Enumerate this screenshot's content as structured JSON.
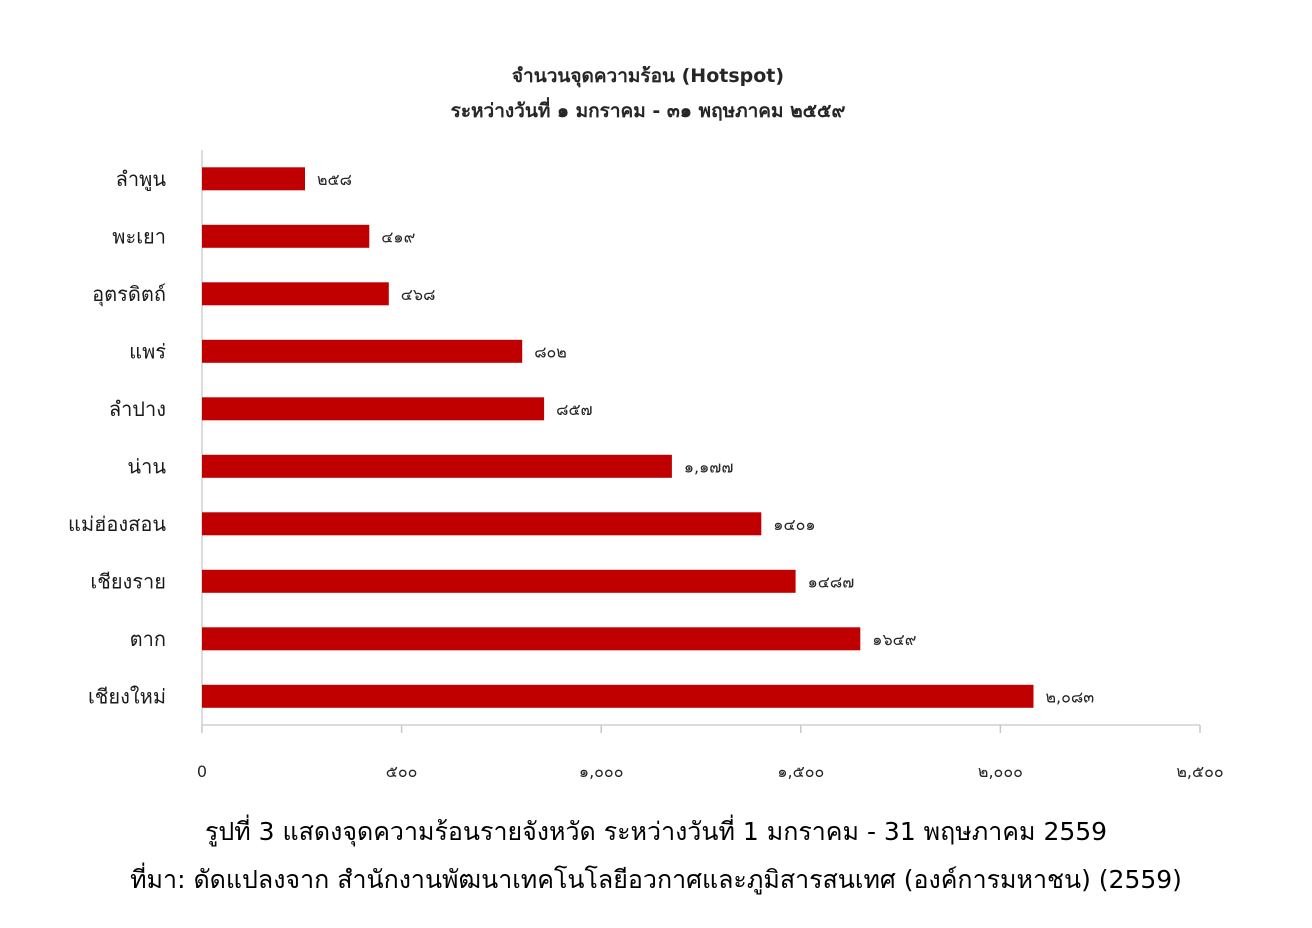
{
  "chart_data": {
    "type": "bar",
    "orientation": "horizontal",
    "title": "จำนวนจุดความร้อน (Hotspot)",
    "subtitle": "ระหว่างวันที่ ๑ มกราคม - ๓๑ พฤษภาคม ๒๕๕๙",
    "categories": [
      "ลำพูน",
      "พะเยา",
      "อุตรดิตถ์",
      "แพร่",
      "ลำปาง",
      "น่าน",
      "แม่ฮ่องสอน",
      "เชียงราย",
      "ตาก",
      "เชียงใหม่"
    ],
    "values": [
      258,
      419,
      468,
      802,
      857,
      1177,
      1401,
      1487,
      1649,
      2083
    ],
    "data_labels": [
      "๒๕๘",
      "๔๑๙",
      "๔๖๘",
      "๘๐๒",
      "๘๕๗",
      "๑,๑๗๗",
      "๑๔๐๑",
      "๑๔๘๗",
      "๑๖๔๙",
      "๒,๐๘๓"
    ],
    "xlim": [
      0,
      2500
    ],
    "x_ticks": [
      0,
      500,
      1000,
      1500,
      2000,
      2500
    ],
    "x_tick_labels": [
      "0",
      "๕๐๐",
      "๑,๐๐๐",
      "๑,๕๐๐",
      "๒,๐๐๐",
      "๒,๕๐๐"
    ],
    "bar_color": "#c00000",
    "grid": false,
    "legend": "none"
  },
  "caption": {
    "line1": "รูปที่ 3 แสดงจุดความร้อนรายจังหวัด ระหว่างวันที่ 1 มกราคม - 31 พฤษภาคม 2559",
    "line2": "ที่มา: ดัดแปลงจาก สำนักงานพัฒนาเทคโนโลยีอวกาศและภูมิสารสนเทศ (องค์การมหาชน) (2559)"
  }
}
